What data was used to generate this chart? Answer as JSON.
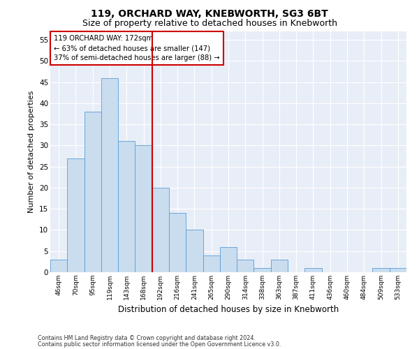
{
  "title1": "119, ORCHARD WAY, KNEBWORTH, SG3 6BT",
  "title2": "Size of property relative to detached houses in Knebworth",
  "xlabel": "Distribution of detached houses by size in Knebworth",
  "ylabel": "Number of detached properties",
  "categories": [
    "46sqm",
    "70sqm",
    "95sqm",
    "119sqm",
    "143sqm",
    "168sqm",
    "192sqm",
    "216sqm",
    "241sqm",
    "265sqm",
    "290sqm",
    "314sqm",
    "338sqm",
    "363sqm",
    "387sqm",
    "411sqm",
    "436sqm",
    "460sqm",
    "484sqm",
    "509sqm",
    "533sqm"
  ],
  "values": [
    3,
    27,
    38,
    46,
    31,
    30,
    20,
    14,
    10,
    4,
    6,
    3,
    1,
    3,
    0,
    1,
    0,
    0,
    0,
    1,
    1
  ],
  "bar_color": "#c9ddef",
  "bar_edge_color": "#5b9bd5",
  "annotation_line1": "119 ORCHARD WAY: 172sqm",
  "annotation_line2": "← 63% of detached houses are smaller (147)",
  "annotation_line3": "37% of semi-detached houses are larger (88) →",
  "vline_color": "#cc0000",
  "ylim": [
    0,
    57
  ],
  "yticks": [
    0,
    5,
    10,
    15,
    20,
    25,
    30,
    35,
    40,
    45,
    50,
    55
  ],
  "footer1": "Contains HM Land Registry data © Crown copyright and database right 2024.",
  "footer2": "Contains public sector information licensed under the Open Government Licence v3.0.",
  "fig_bg_color": "#ffffff",
  "plot_bg_color": "#e8eef7",
  "grid_color": "#ffffff",
  "annotation_box_color": "#ffffff",
  "annotation_box_edge": "#cc0000",
  "title1_fontsize": 10,
  "title2_fontsize": 9,
  "ylabel_fontsize": 8,
  "xlabel_fontsize": 8.5
}
